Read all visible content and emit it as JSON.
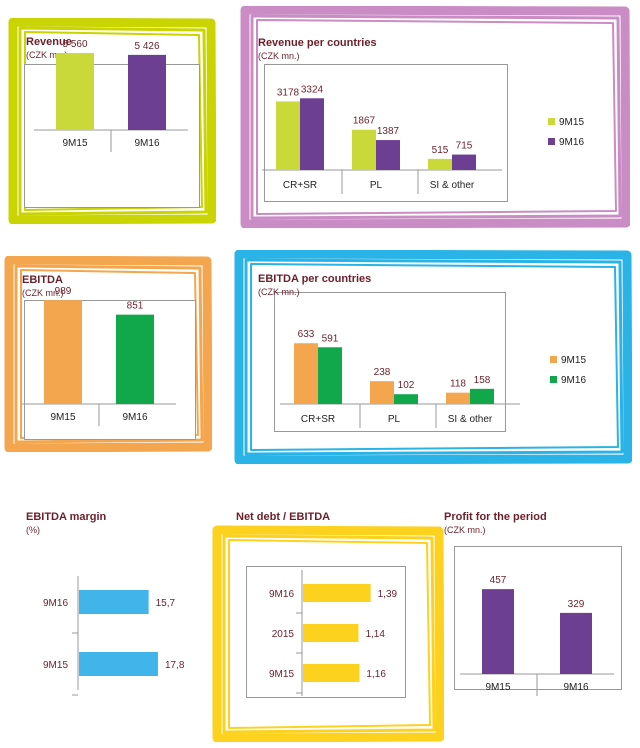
{
  "revenue": {
    "title": "Revenue",
    "unit": "(CZK mn.)",
    "frame_color": "#c9d400",
    "chart_data": {
      "type": "bar",
      "categories": [
        "9M15",
        "9M16"
      ],
      "values": [
        5560,
        5426
      ],
      "value_labels": [
        "5 560",
        "5 426"
      ],
      "colors": [
        "#c9d93a",
        "#6c3f93"
      ],
      "ylim": [
        0,
        6500
      ]
    }
  },
  "revenue_countries": {
    "title": "Revenue per countries",
    "unit": "(CZK mn.)",
    "frame_color": "#c98cc4",
    "chart_data": {
      "type": "bar",
      "categories": [
        "CR+SR",
        "PL",
        "SI & other"
      ],
      "series": [
        {
          "name": "9M15",
          "values": [
            3178,
            1867,
            515
          ],
          "color": "#c9d93a"
        },
        {
          "name": "9M16",
          "values": [
            3324,
            1387,
            715
          ],
          "color": "#6c3f93"
        }
      ],
      "legend": "right",
      "ylim": [
        0,
        3800
      ]
    }
  },
  "ebitda": {
    "title": "EBITDA",
    "unit": "(CZK mn.)",
    "frame_color": "#f4a64e",
    "chart_data": {
      "type": "bar",
      "categories": [
        "9M15",
        "9M16"
      ],
      "values": [
        989,
        851
      ],
      "value_labels": [
        "989",
        "851"
      ],
      "colors": [
        "#f4a64e",
        "#10a84a"
      ],
      "ylim": [
        0,
        1200
      ]
    }
  },
  "ebitda_countries": {
    "title": "EBITDA per countries",
    "unit": "(CZK mn.)",
    "frame_color": "#29b3e6",
    "chart_data": {
      "type": "bar",
      "categories": [
        "CR+SR",
        "PL",
        "SI & other"
      ],
      "series": [
        {
          "name": "9M15",
          "values": [
            633,
            238,
            118
          ],
          "color": "#f4a64e"
        },
        {
          "name": "9M16",
          "values": [
            591,
            102,
            158
          ],
          "color": "#10a84a"
        }
      ],
      "legend": "right",
      "ylim": [
        0,
        750
      ]
    }
  },
  "ebitda_margin": {
    "title": "EBITDA margin",
    "unit": "(%)",
    "chart_data": {
      "type": "bar",
      "orientation": "horizontal",
      "categories": [
        "9M16",
        "9M15"
      ],
      "values": [
        15.7,
        17.8
      ],
      "value_labels": [
        "15,7",
        "17,8"
      ],
      "color": "#41b5e9",
      "xlim": [
        0,
        23
      ]
    }
  },
  "net_debt": {
    "title": "Net debt / EBITDA",
    "frame_color": "#fcd21f",
    "chart_data": {
      "type": "bar",
      "orientation": "horizontal",
      "categories": [
        "9M16",
        "2015",
        "9M15"
      ],
      "values": [
        1.39,
        1.14,
        1.16
      ],
      "value_labels": [
        "1,39",
        "1,14",
        "1,16"
      ],
      "color": "#fcd21f",
      "xlim": [
        0,
        1.85
      ]
    }
  },
  "profit": {
    "title": "Profit for the period",
    "unit": "(CZK mn.)",
    "chart_data": {
      "type": "bar",
      "categories": [
        "9M15",
        "9M16"
      ],
      "values": [
        457,
        329
      ],
      "value_labels": [
        "457",
        "329"
      ],
      "colors": [
        "#6c3f93",
        "#6c3f93"
      ],
      "ylim": [
        0,
        560
      ]
    }
  }
}
